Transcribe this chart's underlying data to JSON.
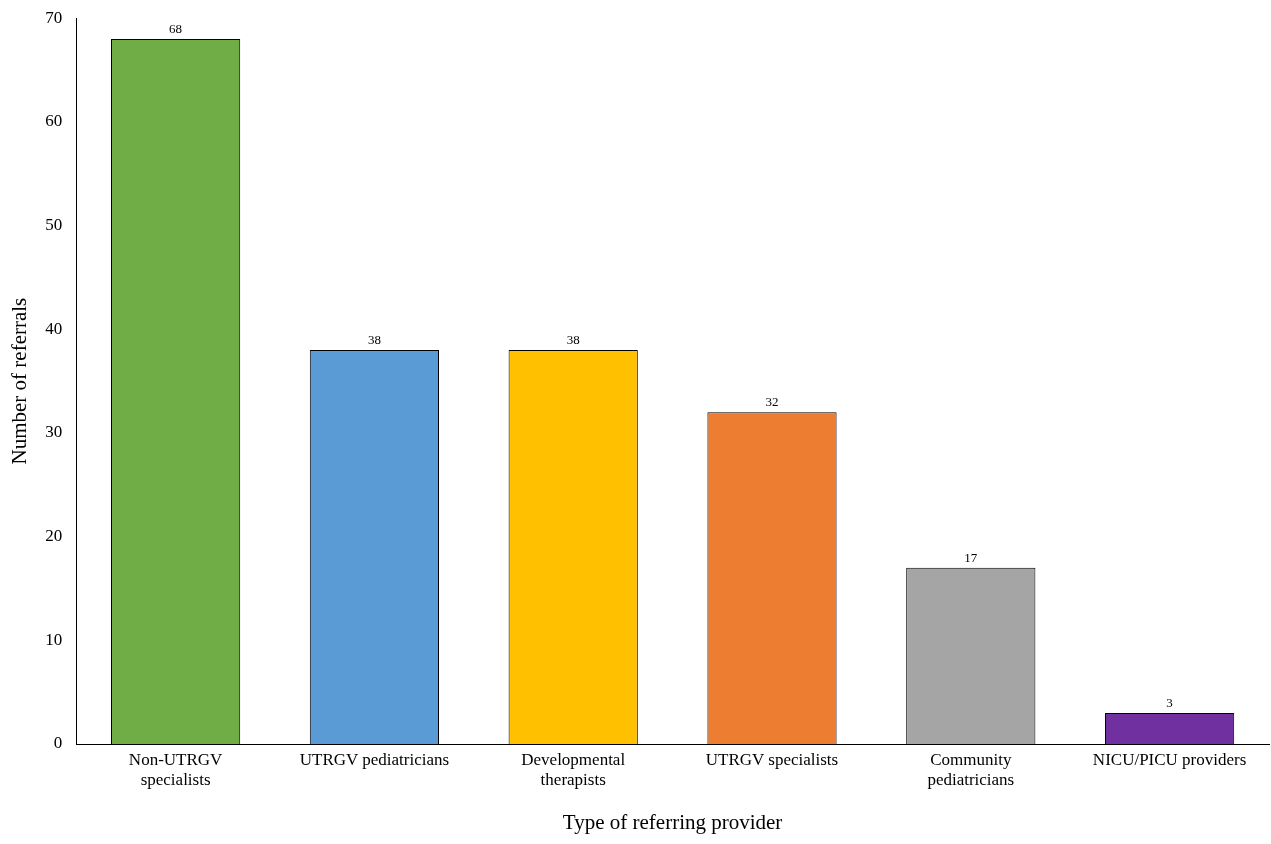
{
  "chart_data": {
    "type": "bar",
    "xlabel": "Type of referring provider",
    "ylabel": "Number of referrals",
    "categories": [
      "Non-UTRGV specialists",
      "UTRGV pediatricians",
      "Developmental therapists",
      "UTRGV specialists",
      "Community pediatricians",
      "NICU/PICU providers"
    ],
    "values": [
      68,
      38,
      38,
      32,
      17,
      3
    ],
    "colors": [
      "#70ad47",
      "#5b9bd5",
      "#ffc000",
      "#ed7d31",
      "#a5a5a5",
      "#7030a0"
    ],
    "ylim": [
      0,
      70
    ],
    "yticks": [
      0,
      10,
      20,
      30,
      40,
      50,
      60,
      70
    ],
    "grid": false,
    "legend": false,
    "data_labels": true
  }
}
